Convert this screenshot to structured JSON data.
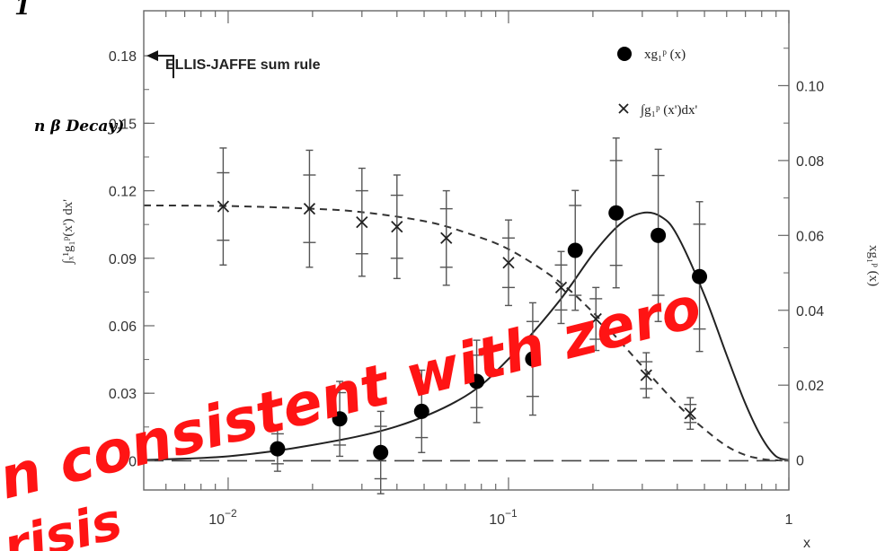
{
  "chart_data": {
    "type": "scatter",
    "x_scale": "log",
    "xlim": [
      0.005,
      1
    ],
    "x_ticks": [
      {
        "value": 0.01,
        "base": "10",
        "exp": "−2"
      },
      {
        "value": 0.1,
        "base": "10",
        "exp": "−1"
      },
      {
        "value": 1,
        "base": "1",
        "exp": ""
      }
    ],
    "xlabel": "x",
    "left_axis": {
      "ylim": [
        -0.013,
        0.2
      ],
      "ticks": [
        {
          "value": 0,
          "label": "0"
        },
        {
          "value": 0.03,
          "label": "0.03"
        },
        {
          "value": 0.06,
          "label": "0.06"
        },
        {
          "value": 0.09,
          "label": "0.09"
        },
        {
          "value": 0.12,
          "label": "0.12"
        },
        {
          "value": 0.15,
          "label": "0.15"
        },
        {
          "value": 0.18,
          "label": "0.18"
        }
      ],
      "label": "∫ₓ¹g₁ᵖ(x') dx'"
    },
    "right_axis": {
      "ylim": [
        -0.008,
        0.12
      ],
      "ticks": [
        {
          "value": 0,
          "label": "0"
        },
        {
          "value": 0.02,
          "label": "0.02"
        },
        {
          "value": 0.04,
          "label": "0.04"
        },
        {
          "value": 0.06,
          "label": "0.06"
        },
        {
          "value": 0.08,
          "label": "0.08"
        },
        {
          "value": 0.1,
          "label": "0.10"
        }
      ],
      "label": "xg₁ᵖ (x)"
    },
    "series": [
      {
        "name": "xg₁ᵖ (x)",
        "axis": "right",
        "marker": "circle",
        "points": [
          {
            "x": 0.015,
            "y": 0.003,
            "err_stat": 0.004,
            "err_tot": 0.006
          },
          {
            "x": 0.025,
            "y": 0.011,
            "err_stat": 0.007,
            "err_tot": 0.01
          },
          {
            "x": 0.035,
            "y": 0.002,
            "err_stat": 0.007,
            "err_tot": 0.011
          },
          {
            "x": 0.049,
            "y": 0.013,
            "err_stat": 0.007,
            "err_tot": 0.011
          },
          {
            "x": 0.077,
            "y": 0.021,
            "err_stat": 0.007,
            "err_tot": 0.011
          },
          {
            "x": 0.122,
            "y": 0.027,
            "err_stat": 0.01,
            "err_tot": 0.015
          },
          {
            "x": 0.173,
            "y": 0.056,
            "err_stat": 0.012,
            "err_tot": 0.016
          },
          {
            "x": 0.242,
            "y": 0.066,
            "err_stat": 0.014,
            "err_tot": 0.02
          },
          {
            "x": 0.342,
            "y": 0.06,
            "err_stat": 0.016,
            "err_tot": 0.023
          },
          {
            "x": 0.48,
            "y": 0.049,
            "err_stat": 0.014,
            "err_tot": 0.02
          }
        ]
      },
      {
        "name": "∫g₁ᵖ (x')dx'",
        "axis": "left",
        "marker": "cross",
        "points": [
          {
            "x": 0.0096,
            "y": 0.113,
            "err_stat": 0.015,
            "err_tot": 0.026
          },
          {
            "x": 0.0195,
            "y": 0.112,
            "err_stat": 0.015,
            "err_tot": 0.026
          },
          {
            "x": 0.03,
            "y": 0.106,
            "err_stat": 0.014,
            "err_tot": 0.024
          },
          {
            "x": 0.04,
            "y": 0.104,
            "err_stat": 0.014,
            "err_tot": 0.023
          },
          {
            "x": 0.06,
            "y": 0.099,
            "err_stat": 0.013,
            "err_tot": 0.021
          },
          {
            "x": 0.1,
            "y": 0.088,
            "err_stat": 0.011,
            "err_tot": 0.019
          },
          {
            "x": 0.154,
            "y": 0.077,
            "err_stat": 0.01,
            "err_tot": 0.016
          },
          {
            "x": 0.205,
            "y": 0.063,
            "err_stat": 0.009,
            "err_tot": 0.014
          },
          {
            "x": 0.31,
            "y": 0.038,
            "err_stat": 0.006,
            "err_tot": 0.01
          },
          {
            "x": 0.445,
            "y": 0.021,
            "err_stat": 0.004,
            "err_tot": 0.007
          }
        ]
      }
    ],
    "fit_curve_solid": {
      "axis": "right",
      "x": [
        0.005,
        0.01,
        0.02,
        0.04,
        0.07,
        0.1,
        0.15,
        0.2,
        0.25,
        0.3,
        0.35,
        0.4,
        0.5,
        0.6,
        0.7,
        0.8,
        0.9,
        1.0
      ],
      "y": [
        0.0,
        0.001,
        0.004,
        0.009,
        0.017,
        0.027,
        0.042,
        0.055,
        0.063,
        0.066,
        0.065,
        0.06,
        0.044,
        0.028,
        0.015,
        0.006,
        0.001,
        0.0
      ]
    },
    "fit_curve_dashed": {
      "axis": "left",
      "x": [
        0.005,
        0.01,
        0.02,
        0.03,
        0.05,
        0.07,
        0.1,
        0.15,
        0.2,
        0.25,
        0.3,
        0.4,
        0.5,
        0.6,
        0.7,
        0.8,
        0.9,
        1.0
      ],
      "y": [
        0.1135,
        0.1132,
        0.112,
        0.1105,
        0.1065,
        0.1015,
        0.094,
        0.08,
        0.066,
        0.053,
        0.042,
        0.025,
        0.014,
        0.0065,
        0.0025,
        0.0008,
        0.0002,
        0.0
      ]
    },
    "reference_line": {
      "y": 0,
      "style": "long-dash"
    },
    "annotation_text": "ELLIS-JAFFE sum rule",
    "annotation_y": 0.18,
    "legend_placement": "top-right"
  },
  "handwriting": {
    "digit": "1",
    "note": "n β Decay)"
  },
  "overlay": {
    "line1": "n consistent with zero",
    "line2": "risis"
  }
}
